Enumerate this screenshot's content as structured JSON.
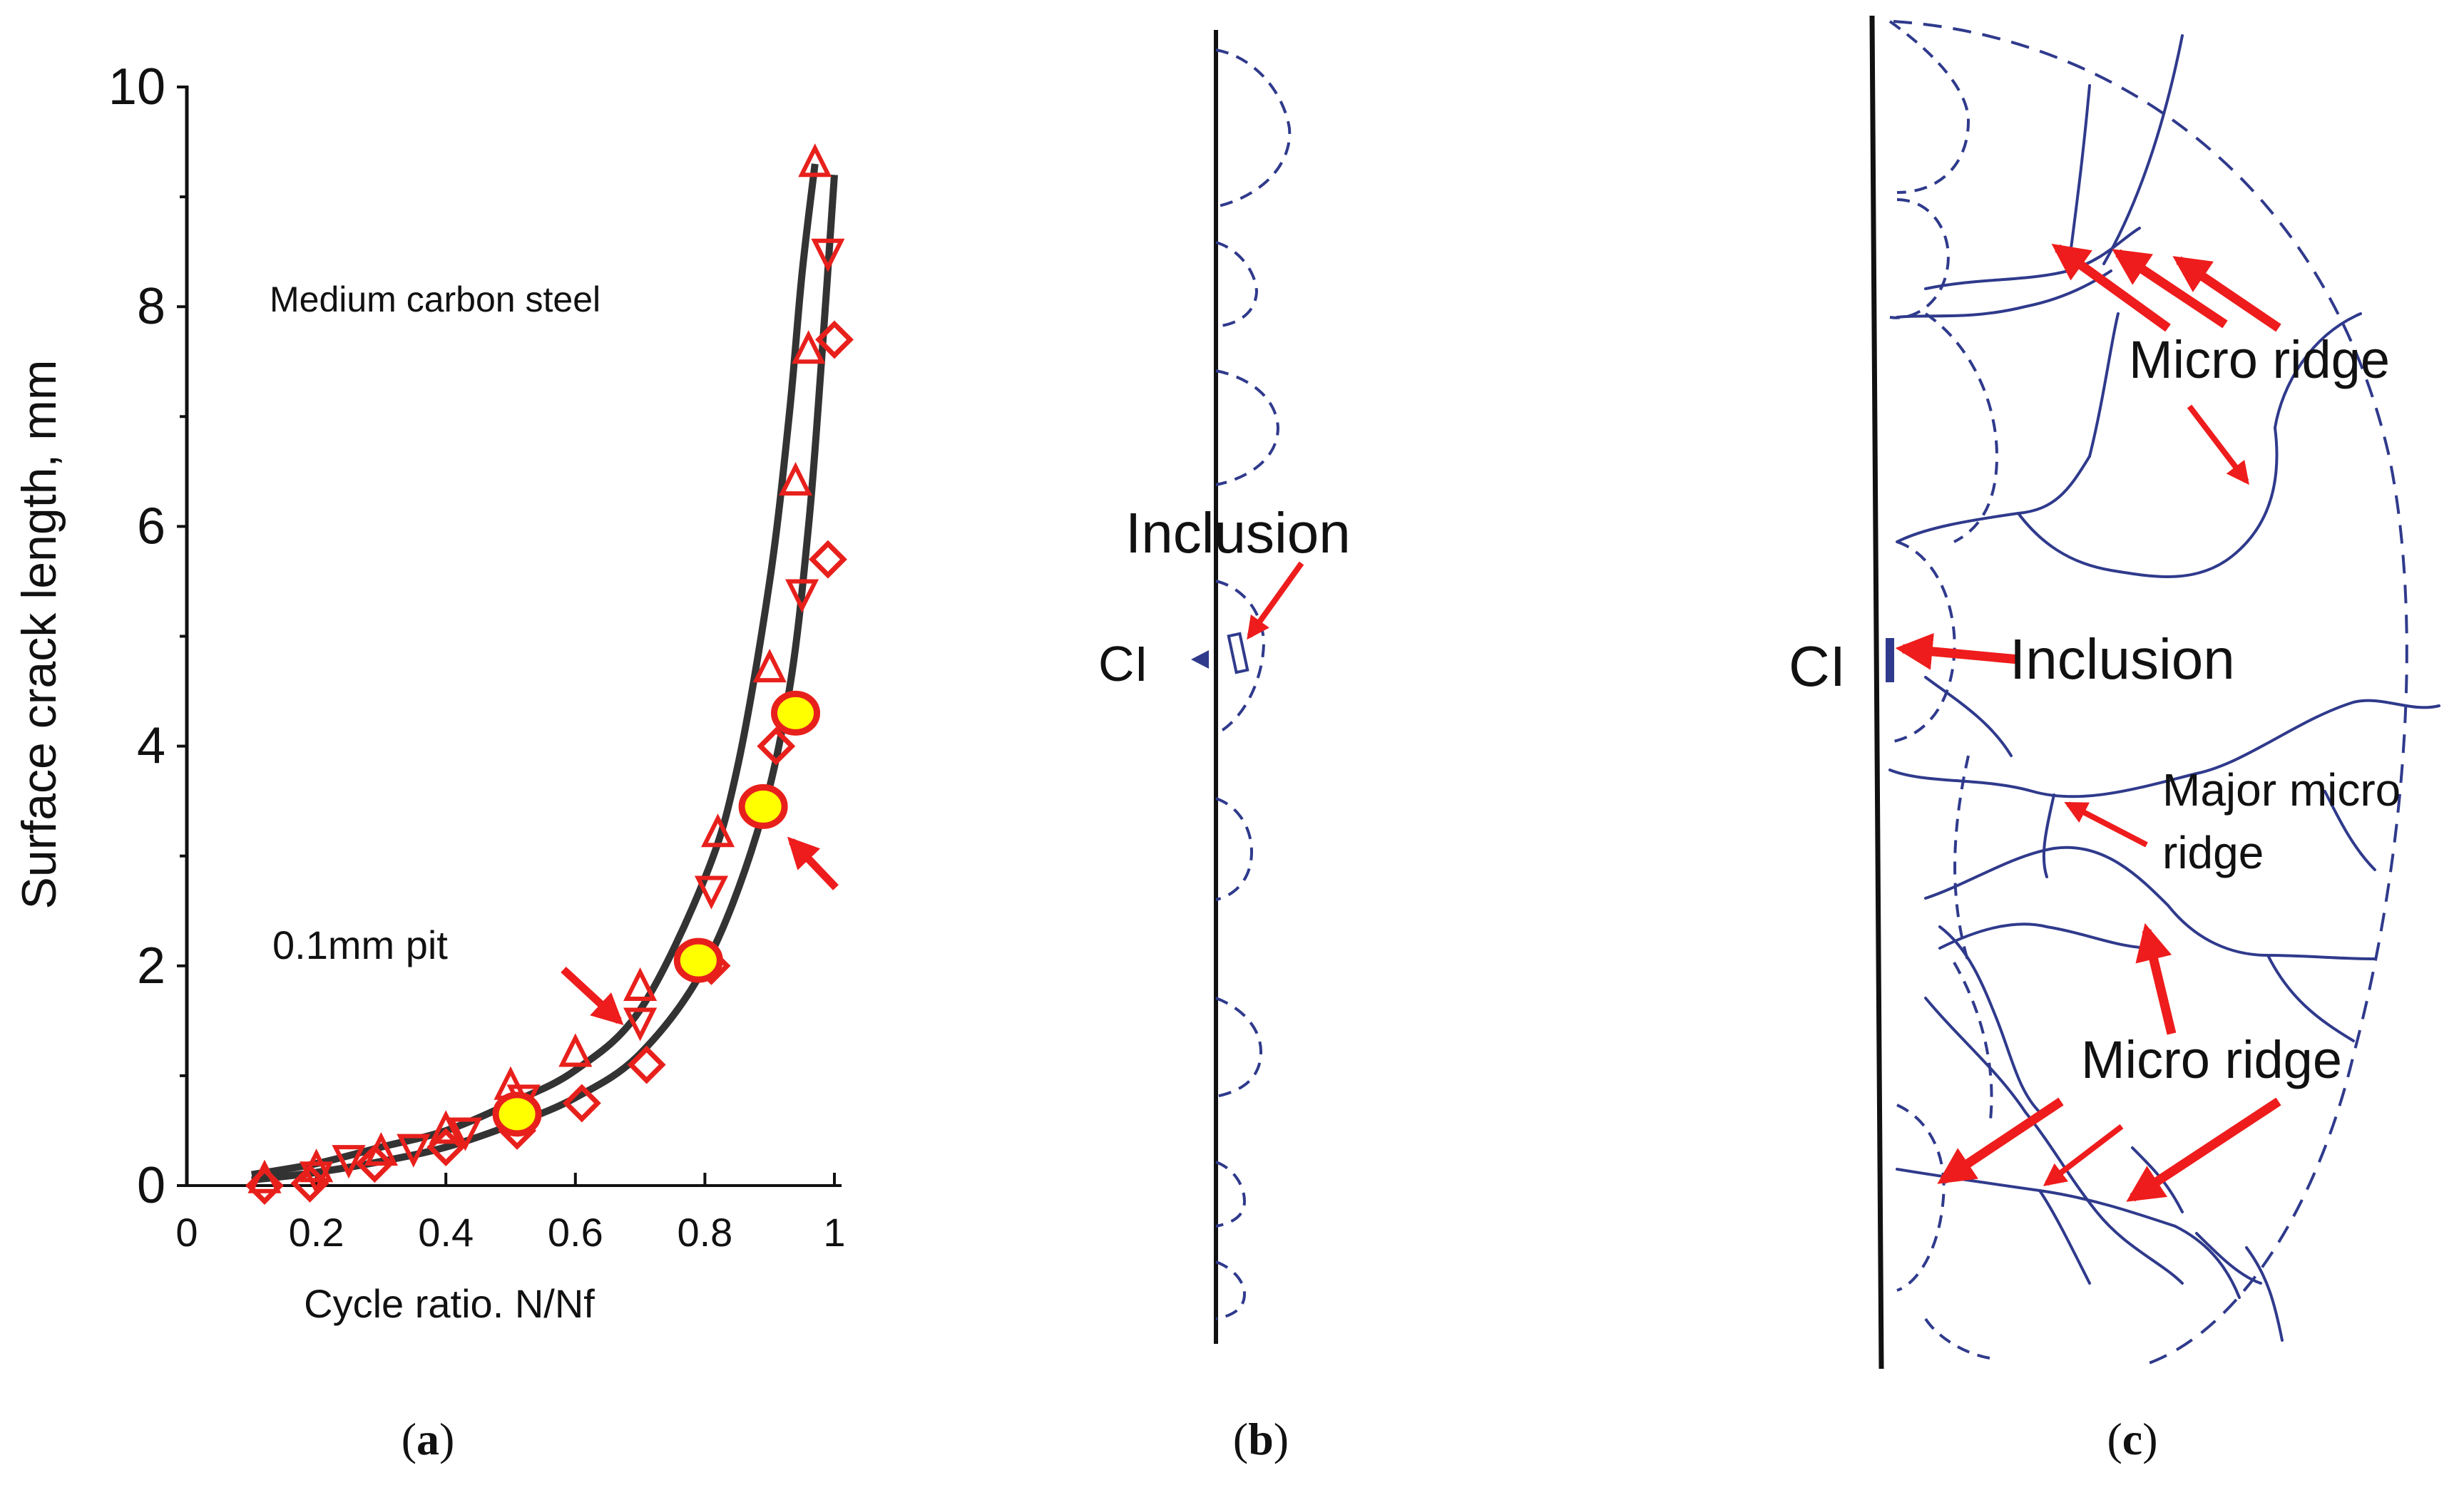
{
  "chart_data": {
    "type": "scatter",
    "title": "Medium carbon steel",
    "xlabel": "Cycle ratio. N/Nf",
    "ylabel": "Surface crack length, mm",
    "xlim": [
      0,
      1
    ],
    "ylim": [
      0,
      10
    ],
    "x_ticks": [
      "0",
      "0.2",
      "0.4",
      "0.6",
      "0.8",
      "1"
    ],
    "y_ticks": [
      "0",
      "2",
      "4",
      "6",
      "8",
      "10"
    ],
    "curves": [
      {
        "name": "upper fit",
        "x": [
          0.1,
          0.2,
          0.3,
          0.4,
          0.5,
          0.6,
          0.7,
          0.8,
          0.85,
          0.9,
          0.93,
          0.95,
          0.97
        ],
        "y": [
          0.1,
          0.2,
          0.35,
          0.5,
          0.75,
          1.05,
          1.6,
          2.8,
          3.8,
          5.5,
          7.0,
          8.3,
          9.3
        ]
      },
      {
        "name": "lower fit",
        "x": [
          0.1,
          0.2,
          0.3,
          0.4,
          0.5,
          0.6,
          0.7,
          0.8,
          0.88,
          0.93,
          0.96,
          0.98,
          1.0
        ],
        "y": [
          0.05,
          0.12,
          0.22,
          0.35,
          0.55,
          0.8,
          1.2,
          2.0,
          3.2,
          4.5,
          6.0,
          7.5,
          9.2
        ]
      }
    ],
    "series": [
      {
        "name": "triangle-up",
        "marker": "triangle-up",
        "x": [
          0.12,
          0.2,
          0.3,
          0.4,
          0.5,
          0.6,
          0.7,
          0.82,
          0.9,
          0.94,
          0.96,
          0.97
        ],
        "y": [
          0.05,
          0.15,
          0.3,
          0.5,
          0.9,
          1.2,
          1.8,
          3.2,
          4.7,
          6.4,
          7.6,
          9.3
        ]
      },
      {
        "name": "triangle-down",
        "marker": "triangle-down",
        "x": [
          0.2,
          0.25,
          0.35,
          0.43,
          0.52,
          0.7,
          0.81,
          0.95,
          0.99
        ],
        "y": [
          0.1,
          0.25,
          0.35,
          0.5,
          0.8,
          1.5,
          2.7,
          5.4,
          8.5
        ]
      },
      {
        "name": "diamond",
        "marker": "diamond",
        "x": [
          0.12,
          0.19,
          0.29,
          0.4,
          0.51,
          0.61,
          0.71,
          0.81,
          0.91,
          0.99,
          1.0
        ],
        "y": [
          0.0,
          0.02,
          0.2,
          0.35,
          0.5,
          0.75,
          1.1,
          2.0,
          4.0,
          5.7,
          7.7
        ]
      },
      {
        "name": "yellow-circle",
        "marker": "yellow-circle",
        "x": [
          0.51,
          0.79,
          0.89,
          0.94
        ],
        "y": [
          0.65,
          2.05,
          3.45,
          4.3
        ]
      }
    ],
    "annotations": [
      "Medium carbon steel",
      "0.1mm pit"
    ]
  },
  "panel_b": {
    "label_inclusion": "Inclusion",
    "label_ci": "CI"
  },
  "panel_c": {
    "label_micro_ridge_top": "Micro ridge",
    "label_inclusion": "Inclusion",
    "label_ci": "CI",
    "label_major_line1": "Major micro",
    "label_major_line2": "ridge",
    "label_micro_ridge_bottom": "Micro ridge"
  },
  "captions": {
    "a": "a",
    "b": "b",
    "c": "c"
  },
  "colors": {
    "marker": "#e8201c",
    "fill_yellow": "#ffff00",
    "curve": "#333333",
    "sketch": "#2f3a8c",
    "arrow": "#ee1c1c"
  }
}
